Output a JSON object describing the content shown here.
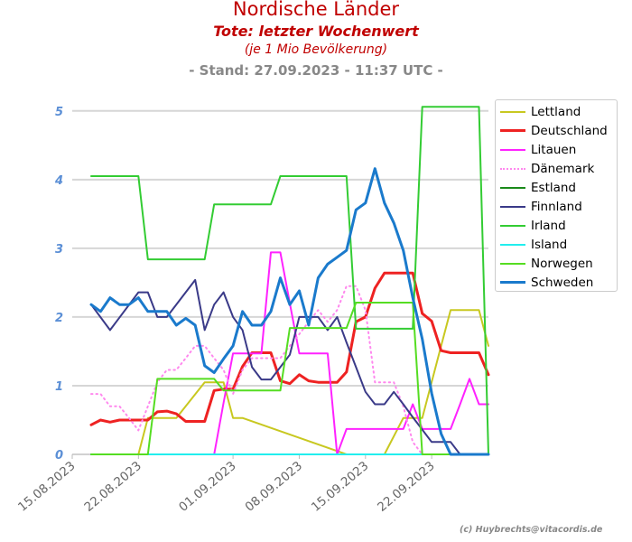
{
  "header": {
    "title": "Nordische Länder",
    "subtitle": "Tote: letzter Wochenwert",
    "note": "(je 1 Mio Bevölkerung)",
    "stand": "- Stand: 27.09.2023 - 11:37 UTC -"
  },
  "credit": "(c) Huybrechts@vitacordis.de",
  "chart_data": {
    "type": "line",
    "x_start": "15.08.2023",
    "x_end": "28.09.2023",
    "x_tick_labels": [
      "15.08.2023",
      "22.08.2023",
      "01.09.2023",
      "08.09.2023",
      "15.09.2023",
      "22.09.2023"
    ],
    "y_ticks": [
      "0",
      "1",
      "2",
      "3",
      "4",
      "5"
    ],
    "ylim": [
      0,
      5.3
    ],
    "grid": "horizontal",
    "legend_position": "right",
    "series": [
      {
        "name": "Lettland",
        "color": "#c8c820",
        "style": "solid",
        "width": 2,
        "x": [
          "17.08.2023",
          "22.08.2023",
          "23.08.2023",
          "26.08.2023",
          "29.08.2023",
          "31.08.2023",
          "01.09.2023",
          "02.09.2023",
          "13.09.2023",
          "16.09.2023",
          "17.09.2023",
          "19.09.2023",
          "21.09.2023",
          "23.09.2023",
          "24.09.2023",
          "27.09.2023",
          "28.09.2023"
        ],
        "y": [
          0,
          0,
          0.53,
          0.53,
          1.05,
          1.05,
          0.53,
          0.53,
          0,
          0,
          0,
          0.53,
          0.53,
          1.58,
          2.1,
          2.1,
          1.58
        ]
      },
      {
        "name": "Deutschland",
        "color": "#ee2222",
        "style": "solid",
        "width": 3,
        "x": [
          "17.08.2023",
          "18.08.2023",
          "19.08.2023",
          "20.08.2023",
          "21.08.2023",
          "22.08.2023",
          "23.08.2023",
          "24.08.2023",
          "25.08.2023",
          "26.08.2023",
          "27.08.2023",
          "28.08.2023",
          "29.08.2023",
          "30.08.2023",
          "31.08.2023",
          "01.09.2023",
          "02.09.2023",
          "03.09.2023",
          "04.09.2023",
          "05.09.2023",
          "06.09.2023",
          "07.09.2023",
          "08.09.2023",
          "09.09.2023",
          "10.09.2023",
          "11.09.2023",
          "12.09.2023",
          "13.09.2023",
          "14.09.2023",
          "15.09.2023",
          "16.09.2023",
          "17.09.2023",
          "18.09.2023",
          "19.09.2023",
          "20.09.2023",
          "21.09.2023",
          "22.09.2023",
          "23.09.2023",
          "24.09.2023",
          "25.09.2023",
          "26.09.2023",
          "27.09.2023",
          "28.09.2023"
        ],
        "y": [
          0.43,
          0.5,
          0.47,
          0.5,
          0.5,
          0.5,
          0.5,
          0.62,
          0.63,
          0.59,
          0.48,
          0.48,
          0.48,
          0.93,
          0.95,
          0.95,
          1.28,
          1.48,
          1.48,
          1.48,
          1.07,
          1.03,
          1.16,
          1.07,
          1.05,
          1.05,
          1.05,
          1.2,
          1.93,
          2.0,
          2.42,
          2.64,
          2.64,
          2.64,
          2.64,
          2.05,
          1.94,
          1.51,
          1.48,
          1.48,
          1.48,
          1.48,
          1.16
        ]
      },
      {
        "name": "Litauen",
        "color": "#ff22ff",
        "style": "solid",
        "width": 2,
        "x": [
          "22.08.2023",
          "26.08.2023",
          "28.08.2023",
          "29.08.2023",
          "30.08.2023",
          "31.08.2023",
          "01.09.2023",
          "02.09.2023",
          "04.09.2023",
          "05.09.2023",
          "06.09.2023",
          "07.09.2023",
          "08.09.2023",
          "09.09.2023",
          "10.09.2023",
          "11.09.2023",
          "12.09.2023",
          "13.09.2023",
          "14.09.2023",
          "15.09.2023",
          "16.09.2023",
          "17.09.2023",
          "18.09.2023",
          "19.09.2023",
          "20.09.2023",
          "21.09.2023",
          "22.09.2023",
          "23.09.2023",
          "24.09.2023",
          "25.09.2023",
          "26.09.2023",
          "27.09.2023",
          "28.09.2023"
        ],
        "y": [
          0,
          0,
          0,
          0,
          0,
          0.75,
          1.47,
          1.47,
          1.47,
          2.94,
          2.94,
          2.2,
          1.47,
          1.47,
          1.47,
          1.47,
          0,
          0.37,
          0.37,
          0.37,
          0.37,
          0.37,
          0.37,
          0.37,
          0.73,
          0.37,
          0.37,
          0.37,
          0.37,
          0.73,
          1.1,
          0.73,
          0.73
        ]
      },
      {
        "name": "Dänemark",
        "color": "#ff88ee",
        "style": "dotted",
        "width": 2,
        "x": [
          "17.08.2023",
          "18.08.2023",
          "19.08.2023",
          "20.08.2023",
          "21.08.2023",
          "22.08.2023",
          "23.08.2023",
          "24.08.2023",
          "25.08.2023",
          "26.08.2023",
          "27.08.2023",
          "28.08.2023",
          "29.08.2023",
          "30.08.2023",
          "31.08.2023",
          "01.09.2023",
          "02.09.2023",
          "03.09.2023",
          "04.09.2023",
          "05.09.2023",
          "06.09.2023",
          "07.09.2023",
          "08.09.2023",
          "09.09.2023",
          "10.09.2023",
          "11.09.2023",
          "12.09.2023",
          "13.09.2023",
          "14.09.2023",
          "15.09.2023",
          "16.09.2023",
          "17.09.2023",
          "18.09.2023",
          "19.09.2023",
          "20.09.2023",
          "21.09.2023",
          "22.09.2023"
        ],
        "y": [
          0.88,
          0.88,
          0.7,
          0.7,
          0.53,
          0.35,
          0.7,
          1.05,
          1.23,
          1.23,
          1.4,
          1.58,
          1.58,
          1.4,
          1.23,
          0.88,
          1.23,
          1.4,
          1.4,
          1.4,
          1.4,
          1.58,
          1.75,
          1.93,
          2.1,
          1.93,
          2.1,
          2.45,
          2.45,
          2.1,
          1.05,
          1.05,
          1.05,
          0.7,
          0.18,
          0,
          0
        ]
      },
      {
        "name": "Estland",
        "color": "#1a8a1a",
        "style": "solid",
        "width": 2,
        "x": [
          "17.08.2023",
          "28.09.2023"
        ],
        "y": [
          0,
          0
        ]
      },
      {
        "name": "Finnland",
        "color": "#3a3a88",
        "style": "solid",
        "width": 2,
        "x": [
          "17.08.2023",
          "19.08.2023",
          "22.08.2023",
          "23.08.2023",
          "24.08.2023",
          "25.08.2023",
          "28.08.2023",
          "29.08.2023",
          "30.08.2023",
          "31.08.2023",
          "01.09.2023",
          "02.09.2023",
          "03.09.2023",
          "04.09.2023",
          "05.09.2023",
          "07.09.2023",
          "08.09.2023",
          "09.09.2023",
          "10.09.2023",
          "11.09.2023",
          "12.09.2023",
          "13.09.2023",
          "14.09.2023",
          "15.09.2023",
          "16.09.2023",
          "17.09.2023",
          "18.09.2023",
          "19.09.2023",
          "20.09.2023",
          "21.09.2023",
          "22.09.2023",
          "23.09.2023",
          "24.09.2023",
          "25.09.2023",
          "26.09.2023",
          "27.09.2023",
          "28.09.2023"
        ],
        "y": [
          2.18,
          1.81,
          2.36,
          2.36,
          2.0,
          2.0,
          2.54,
          1.81,
          2.18,
          2.36,
          2.0,
          1.81,
          1.27,
          1.09,
          1.09,
          1.45,
          2.0,
          2.0,
          2.0,
          1.81,
          2.0,
          1.63,
          1.27,
          0.91,
          0.73,
          0.73,
          0.91,
          0.73,
          0.54,
          0.36,
          0.18,
          0.18,
          0.18,
          0,
          0,
          0,
          0
        ]
      },
      {
        "name": "Irland",
        "color": "#33cc33",
        "style": "solid",
        "width": 2,
        "x": [
          "17.08.2023",
          "22.08.2023",
          "23.08.2023",
          "29.08.2023",
          "30.08.2023",
          "05.09.2023",
          "06.09.2023",
          "13.09.2023",
          "14.09.2023",
          "20.09.2023",
          "21.09.2023",
          "27.09.2023",
          "28.09.2023"
        ],
        "y": [
          4.05,
          4.05,
          2.84,
          2.84,
          3.64,
          3.64,
          4.05,
          4.05,
          1.83,
          1.83,
          5.06,
          5.06,
          0
        ]
      },
      {
        "name": "Island",
        "color": "#22eeee",
        "style": "solid",
        "width": 2,
        "x": [
          "17.08.2023",
          "28.09.2023"
        ],
        "y": [
          0,
          0
        ]
      },
      {
        "name": "Norwegen",
        "color": "#55dd22",
        "style": "solid",
        "width": 2,
        "x": [
          "17.08.2023",
          "23.08.2023",
          "24.08.2023",
          "30.08.2023",
          "31.08.2023",
          "06.09.2023",
          "07.09.2023",
          "13.09.2023",
          "14.09.2023",
          "20.09.2023",
          "21.09.2023",
          "28.09.2023"
        ],
        "y": [
          0,
          0,
          1.1,
          1.1,
          0.93,
          0.93,
          1.84,
          1.84,
          2.21,
          2.21,
          0,
          0
        ]
      },
      {
        "name": "Schweden",
        "color": "#1a7acc",
        "style": "solid",
        "width": 3,
        "x": [
          "17.08.2023",
          "18.08.2023",
          "19.08.2023",
          "20.08.2023",
          "21.08.2023",
          "22.08.2023",
          "23.08.2023",
          "24.08.2023",
          "25.08.2023",
          "26.08.2023",
          "27.08.2023",
          "28.08.2023",
          "29.08.2023",
          "30.08.2023",
          "31.08.2023",
          "01.09.2023",
          "02.09.2023",
          "03.09.2023",
          "04.09.2023",
          "05.09.2023",
          "06.09.2023",
          "07.09.2023",
          "08.09.2023",
          "09.09.2023",
          "10.09.2023",
          "11.09.2023",
          "12.09.2023",
          "13.09.2023",
          "14.09.2023",
          "15.09.2023",
          "16.09.2023",
          "17.09.2023",
          "18.09.2023",
          "19.09.2023",
          "20.09.2023",
          "21.09.2023",
          "22.09.2023",
          "23.09.2023",
          "24.09.2023",
          "25.09.2023",
          "26.09.2023",
          "27.09.2023",
          "28.09.2023"
        ],
        "y": [
          2.18,
          2.08,
          2.28,
          2.18,
          2.18,
          2.28,
          2.08,
          2.08,
          2.08,
          1.88,
          1.98,
          1.88,
          1.29,
          1.19,
          1.39,
          1.58,
          2.08,
          1.88,
          1.88,
          2.08,
          2.57,
          2.18,
          2.38,
          1.88,
          2.57,
          2.77,
          2.87,
          2.97,
          3.56,
          3.66,
          4.16,
          3.66,
          3.37,
          2.97,
          2.28,
          1.68,
          0.89,
          0.3,
          0,
          0,
          0,
          0,
          0
        ]
      }
    ]
  }
}
